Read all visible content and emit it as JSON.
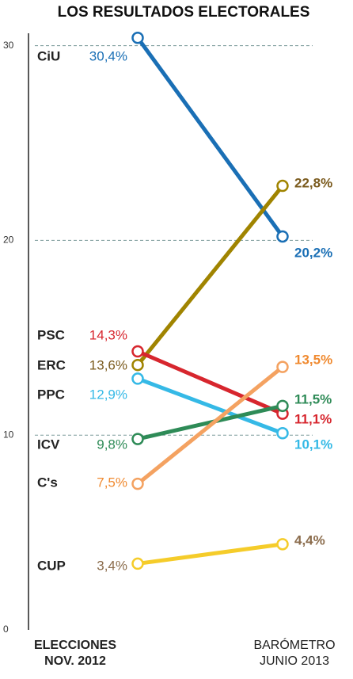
{
  "chart_data": {
    "type": "slope",
    "title": "LOS RESULTADOS ELECTORALES",
    "categories": [
      [
        "ELECCIONES",
        "NOV. 2012"
      ],
      [
        "BARÓMETRO",
        "JUNIO 2013"
      ]
    ],
    "ylim": [
      0,
      31
    ],
    "yticks": [
      0,
      10,
      20,
      30
    ],
    "grid": true,
    "series": [
      {
        "name": "CiU",
        "color": "#1a6fb5",
        "label_color": "#1a6fb5",
        "values": [
          30.4,
          20.2
        ],
        "value_labels": [
          "30,4%",
          "20,2%"
        ]
      },
      {
        "name": "ERC",
        "color": "#a08400",
        "label_color": "#7b5b1e",
        "values": [
          13.6,
          22.8
        ],
        "value_labels": [
          "13,6%",
          "22,8%"
        ]
      },
      {
        "name": "PSC",
        "color": "#d7262e",
        "label_color": "#d7262e",
        "values": [
          14.3,
          11.1
        ],
        "value_labels": [
          "14,3%",
          "11,1%"
        ]
      },
      {
        "name": "PPC",
        "color": "#35b9e6",
        "label_color": "#35b9e6",
        "values": [
          12.9,
          10.1
        ],
        "value_labels": [
          "12,9%",
          "10,1%"
        ]
      },
      {
        "name": "ICV",
        "color": "#2e8b57",
        "label_color": "#2e8b57",
        "values": [
          9.8,
          11.5
        ],
        "value_labels": [
          "9,8%",
          "11,5%"
        ]
      },
      {
        "name": "C's",
        "color": "#f4a261",
        "label_color": "#f08a30",
        "values": [
          7.5,
          13.5
        ],
        "value_labels": [
          "7,5%",
          "13,5%"
        ]
      },
      {
        "name": "CUP",
        "color": "#f5cc2a",
        "label_color": "#8b6c4c",
        "values": [
          3.4,
          4.4
        ],
        "value_labels": [
          "3,4%",
          "4,4%"
        ]
      }
    ]
  }
}
